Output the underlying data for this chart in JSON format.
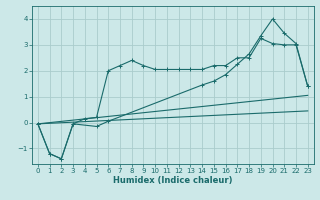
{
  "xlabel": "Humidex (Indice chaleur)",
  "background_color": "#cce8e8",
  "grid_color": "#aacccc",
  "line_color": "#1a6b6b",
  "xlim": [
    -0.5,
    23.5
  ],
  "ylim": [
    -1.6,
    4.5
  ],
  "xticks": [
    0,
    1,
    2,
    3,
    4,
    5,
    6,
    7,
    8,
    9,
    10,
    11,
    12,
    13,
    14,
    15,
    16,
    17,
    18,
    19,
    20,
    21,
    22,
    23
  ],
  "yticks": [
    -1,
    0,
    1,
    2,
    3,
    4
  ],
  "line1_x": [
    0,
    1,
    2,
    3,
    4,
    5,
    6,
    7,
    8,
    9,
    10,
    11,
    12,
    13,
    14,
    15,
    16,
    17,
    18,
    19,
    20,
    21,
    22,
    23
  ],
  "line1_y": [
    -0.05,
    -1.2,
    -1.4,
    -0.05,
    0.15,
    0.2,
    2.0,
    2.2,
    2.4,
    2.2,
    2.05,
    2.05,
    2.05,
    2.05,
    2.05,
    2.2,
    2.2,
    2.5,
    2.5,
    3.25,
    3.05,
    3.0,
    3.0,
    1.4
  ],
  "line2_x": [
    0,
    1,
    2,
    3,
    5,
    6,
    14,
    15,
    16,
    17,
    18,
    19,
    20,
    21,
    22,
    23
  ],
  "line2_y": [
    -0.05,
    -1.2,
    -1.4,
    -0.05,
    -0.15,
    0.05,
    1.45,
    1.6,
    1.85,
    2.25,
    2.65,
    3.35,
    4.0,
    3.45,
    3.05,
    1.4
  ],
  "line3_x": [
    0,
    23
  ],
  "line3_y": [
    -0.05,
    1.05
  ],
  "line4_x": [
    0,
    23
  ],
  "line4_y": [
    -0.05,
    0.45
  ]
}
